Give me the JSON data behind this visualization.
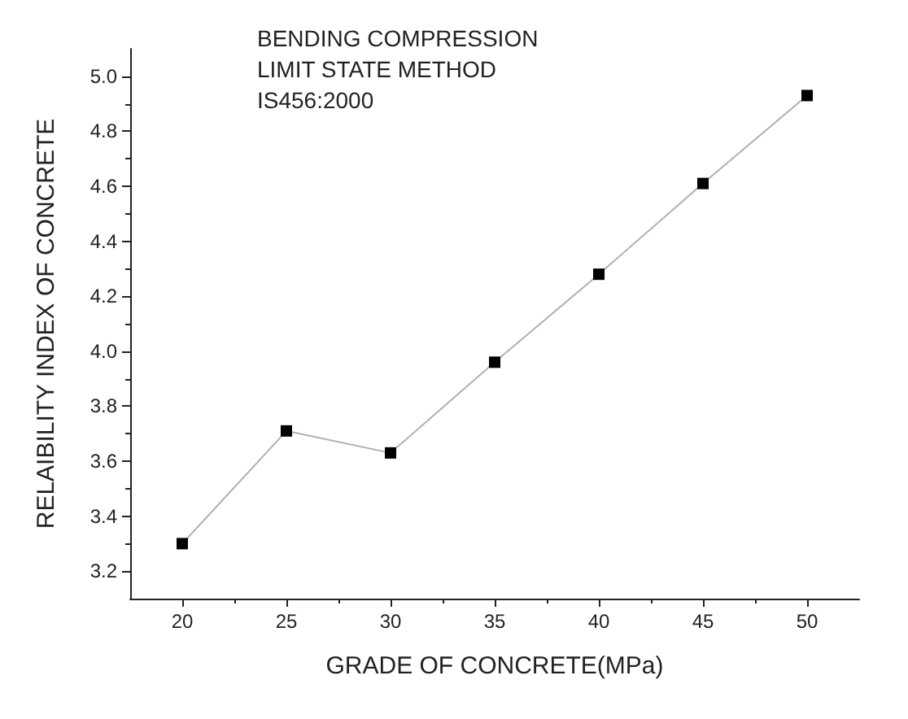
{
  "chart_data": {
    "type": "line",
    "xlabel": "GRADE OF CONCRETE(MPa)",
    "ylabel": "RELAIBILITY INDEX OF CONCRETE",
    "annotations": [
      "BENDING COMPRESSION\nLIMIT STATE METHOD\nIS456:2000"
    ],
    "x": [
      20,
      25,
      30,
      35,
      40,
      45,
      50
    ],
    "series": [
      {
        "color": "#000000",
        "values": [
          3.3,
          3.71,
          3.63,
          3.96,
          4.28,
          4.61,
          4.93
        ]
      }
    ],
    "xlim": [
      17.5,
      52.5
    ],
    "xticks": [
      20,
      25,
      30,
      35,
      40,
      45,
      50
    ],
    "ylim": [
      3.1,
      5.1
    ],
    "yticks": [
      3.2,
      3.4,
      3.6,
      3.8,
      {
        "value": 4,
        "label": "4.0"
      },
      4.2,
      4.4,
      4.6,
      4.8,
      {
        "value": 5,
        "label": "5.0"
      }
    ],
    "grid": false,
    "marker": "square",
    "line_style": "solid"
  }
}
